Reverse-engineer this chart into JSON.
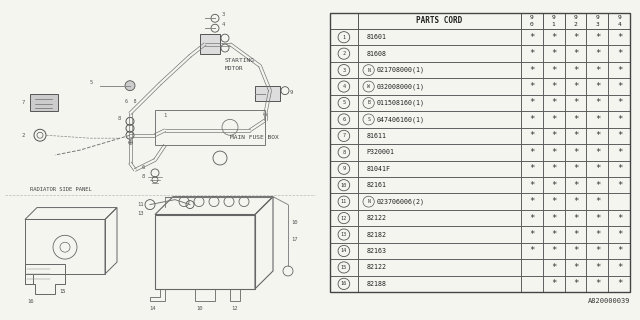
{
  "bg_color": "#f5f5f0",
  "part_number_header": "PARTS CORD",
  "year_columns": [
    "9\n0",
    "9\n1",
    "9\n2",
    "9\n3",
    "9\n4"
  ],
  "rows": [
    {
      "num": "1",
      "label": "81601",
      "marks": [
        1,
        1,
        1,
        1,
        1
      ],
      "prefix_circle": ""
    },
    {
      "num": "2",
      "label": "81608",
      "marks": [
        1,
        1,
        1,
        1,
        1
      ],
      "prefix_circle": ""
    },
    {
      "num": "3",
      "label": "021708000(1)",
      "marks": [
        1,
        1,
        1,
        1,
        1
      ],
      "prefix_circle": "N"
    },
    {
      "num": "4",
      "label": "032008000(1)",
      "marks": [
        1,
        1,
        1,
        1,
        1
      ],
      "prefix_circle": "W"
    },
    {
      "num": "5",
      "label": "011508160(1)",
      "marks": [
        1,
        1,
        1,
        1,
        1
      ],
      "prefix_circle": "B"
    },
    {
      "num": "6",
      "label": "047406160(1)",
      "marks": [
        1,
        1,
        1,
        1,
        1
      ],
      "prefix_circle": "S"
    },
    {
      "num": "7",
      "label": "81611",
      "marks": [
        1,
        1,
        1,
        1,
        1
      ],
      "prefix_circle": ""
    },
    {
      "num": "8",
      "label": "P320001",
      "marks": [
        1,
        1,
        1,
        1,
        1
      ],
      "prefix_circle": ""
    },
    {
      "num": "9",
      "label": "81041F",
      "marks": [
        1,
        1,
        1,
        1,
        1
      ],
      "prefix_circle": ""
    },
    {
      "num": "10",
      "label": "82161",
      "marks": [
        1,
        1,
        1,
        1,
        1
      ],
      "prefix_circle": ""
    },
    {
      "num": "11",
      "label": "023706006(2)",
      "marks": [
        1,
        1,
        1,
        1,
        0
      ],
      "prefix_circle": "N"
    },
    {
      "num": "12",
      "label": "82122",
      "marks": [
        1,
        1,
        1,
        1,
        1
      ],
      "prefix_circle": ""
    },
    {
      "num": "13",
      "label": "82182",
      "marks": [
        1,
        1,
        1,
        1,
        1
      ],
      "prefix_circle": ""
    },
    {
      "num": "14",
      "label": "82163",
      "marks": [
        1,
        1,
        1,
        1,
        1
      ],
      "prefix_circle": ""
    },
    {
      "num": "15",
      "label": "82122",
      "marks": [
        0,
        1,
        1,
        1,
        1
      ],
      "prefix_circle": ""
    },
    {
      "num": "16",
      "label": "82188",
      "marks": [
        0,
        1,
        1,
        1,
        1
      ],
      "prefix_circle": ""
    }
  ],
  "watermark": "A820000039",
  "diag_color": "#888888",
  "diag_dark": "#555555"
}
